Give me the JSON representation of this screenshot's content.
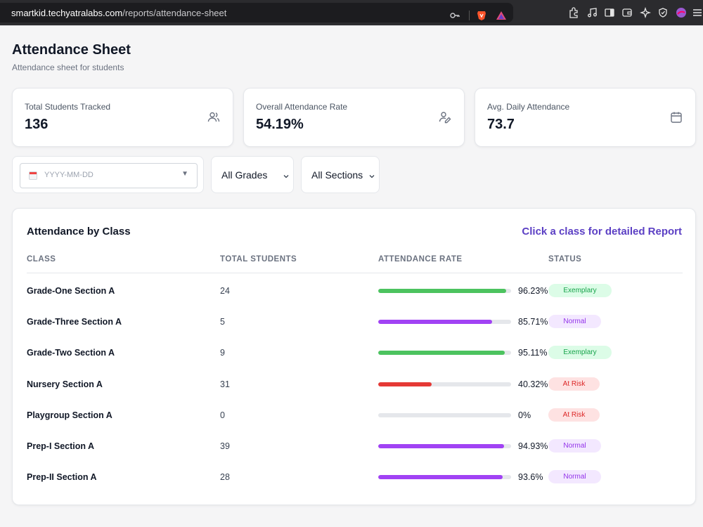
{
  "browser": {
    "url_host": "smartkid.techyatralabs.com",
    "url_path": "/reports/attendance-sheet"
  },
  "page": {
    "title": "Attendance Sheet",
    "subtitle": "Attendance sheet for students"
  },
  "stats": [
    {
      "label": "Total Students Tracked",
      "value": "136",
      "icon": "users-icon"
    },
    {
      "label": "Overall Attendance Rate",
      "value": "54.19%",
      "icon": "user-edit-icon"
    },
    {
      "label": "Avg. Daily Attendance",
      "value": "73.7",
      "icon": "calendar-icon"
    }
  ],
  "filters": {
    "date_placeholder": "YYYY-MM-DD",
    "grade": "All Grades",
    "section": "All Sections"
  },
  "table": {
    "title": "Attendance by Class",
    "link": "Click a class for detailed Report",
    "headers": {
      "class": "CLASS",
      "total": "TOTAL STUDENTS",
      "rate": "ATTENDANCE RATE",
      "status": "STATUS"
    },
    "rows": [
      {
        "class": "Grade-One Section A",
        "total": "24",
        "rate": "96.23%",
        "fill": 0.9623,
        "status": "Exemplary"
      },
      {
        "class": "Grade-Three Section A",
        "total": "5",
        "rate": "85.71%",
        "fill": 0.8571,
        "status": "Normal"
      },
      {
        "class": "Grade-Two Section A",
        "total": "9",
        "rate": "95.11%",
        "fill": 0.9511,
        "status": "Exemplary"
      },
      {
        "class": "Nursery Section A",
        "total": "31",
        "rate": "40.32%",
        "fill": 0.4032,
        "status": "At Risk"
      },
      {
        "class": "Playgroup Section A",
        "total": "0",
        "rate": "0%",
        "fill": 0,
        "status": "At Risk"
      },
      {
        "class": "Prep-I Section A",
        "total": "39",
        "rate": "94.93%",
        "fill": 0.9493,
        "status": "Normal"
      },
      {
        "class": "Prep-II Section A",
        "total": "28",
        "rate": "93.6%",
        "fill": 0.936,
        "status": "Normal"
      }
    ]
  },
  "status_styles": {
    "Exemplary": {
      "bar": "#4cc35f",
      "badge_bg": "#dcfce7",
      "badge_fg": "#16a34a"
    },
    "Normal": {
      "bar": "#a142f4",
      "badge_bg": "#f3e8ff",
      "badge_fg": "#9333ea"
    },
    "At Risk": {
      "bar": "#e53935",
      "badge_bg": "#fee2e2",
      "badge_fg": "#dc2626"
    }
  }
}
